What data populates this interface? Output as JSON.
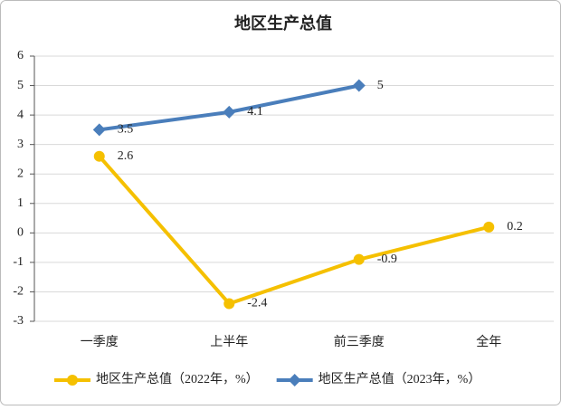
{
  "chart_data": {
    "type": "line",
    "title": "地区生产总值",
    "categories": [
      "一季度",
      "上半年",
      "前三季度",
      "全年"
    ],
    "series": [
      {
        "name": "地区生产总值（2022年，%）",
        "color": "#f5c000",
        "marker": "circle",
        "values": [
          2.6,
          -2.4,
          -0.9,
          0.2
        ]
      },
      {
        "name": "地区生产总值（2023年，%）",
        "color": "#4a7ebb",
        "marker": "diamond",
        "values": [
          3.5,
          4.1,
          5,
          null
        ]
      }
    ],
    "ylim": [
      -3,
      6
    ],
    "yticks": [
      -3,
      -2,
      -1,
      0,
      1,
      2,
      3,
      4,
      5,
      6
    ],
    "grid": true,
    "legend": "bottom"
  }
}
